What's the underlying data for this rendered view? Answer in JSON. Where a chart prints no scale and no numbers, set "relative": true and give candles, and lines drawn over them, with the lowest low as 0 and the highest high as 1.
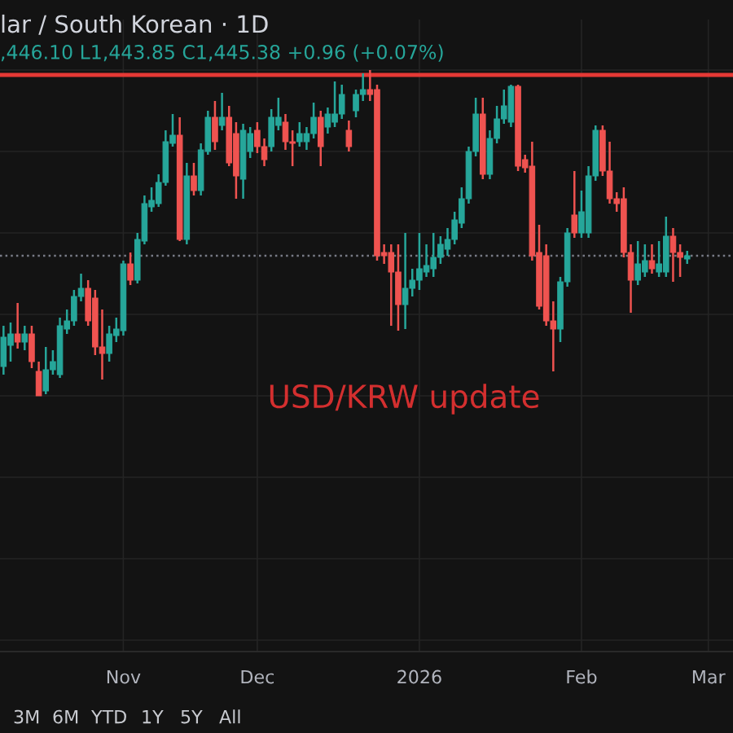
{
  "chart_data": {
    "type": "candlestick",
    "relative": true,
    "title": "lar / South Korean · 1D",
    "subtitle": ",446.10 L1,443.85 C1,445.38 +0.96 (+0.07%)",
    "categories": [
      null,
      null,
      null,
      null,
      null,
      null,
      null,
      null,
      null,
      null,
      null,
      null,
      null,
      null,
      null,
      null,
      null,
      "Nov",
      null,
      null,
      null,
      null,
      null,
      null,
      null,
      null,
      null,
      null,
      null,
      null,
      null,
      null,
      null,
      null,
      null,
      null,
      "Dec",
      null,
      null,
      null,
      null,
      null,
      null,
      null,
      null,
      null,
      null,
      null,
      null,
      null,
      null,
      null,
      null,
      null,
      null,
      null,
      null,
      null,
      null,
      "2026",
      null,
      null,
      null,
      null,
      null,
      null,
      null,
      null,
      null,
      null,
      null,
      null,
      null,
      null,
      null,
      null,
      null,
      null,
      null,
      null,
      null,
      null,
      "Feb",
      null,
      null,
      null,
      null,
      null,
      null,
      null,
      null,
      null,
      null,
      null,
      null,
      null,
      null,
      null,
      null,
      null,
      "Mar"
    ],
    "ohlc": [
      [
        0.09,
        0.215,
        0.065,
        0.18
      ],
      [
        0.155,
        0.225,
        0.105,
        0.19
      ],
      [
        0.19,
        0.285,
        0.145,
        0.165
      ],
      [
        0.165,
        0.215,
        0.14,
        0.19
      ],
      [
        0.19,
        0.215,
        0.085,
        0.105
      ],
      [
        0.075,
        0.105,
        0,
        0
      ],
      [
        0.015,
        0.15,
        0.005,
        0.08
      ],
      [
        0.08,
        0.14,
        0.065,
        0.105
      ],
      [
        0.065,
        0.24,
        0.055,
        0.215
      ],
      [
        0.205,
        0.265,
        0.19,
        0.23
      ],
      [
        0.23,
        0.325,
        0.215,
        0.305
      ],
      [
        0.305,
        0.375,
        0.29,
        0.33
      ],
      [
        0.33,
        0.355,
        0.215,
        0.23
      ],
      [
        0.3,
        0.325,
        0.125,
        0.15
      ],
      [
        0.15,
        0.265,
        0.05,
        0.13
      ],
      [
        0.13,
        0.215,
        0.105,
        0.19
      ],
      [
        0.185,
        0.24,
        0.165,
        0.205
      ],
      [
        0.2,
        0.415,
        0.185,
        0.405
      ],
      [
        0.405,
        0.44,
        0.34,
        0.355
      ],
      [
        0.355,
        0.5,
        0.345,
        0.48
      ],
      [
        0.475,
        0.615,
        0.465,
        0.59
      ],
      [
        0.58,
        0.64,
        0.565,
        0.6
      ],
      [
        0.59,
        0.68,
        0.58,
        0.655
      ],
      [
        0.655,
        0.815,
        0.645,
        0.78
      ],
      [
        0.775,
        0.865,
        0.765,
        0.8
      ],
      [
        0.8,
        0.855,
        0.475,
        0.48
      ],
      [
        0.48,
        0.715,
        0.465,
        0.675
      ],
      [
        0.675,
        0.715,
        0.615,
        0.63
      ],
      [
        0.63,
        0.775,
        0.615,
        0.755
      ],
      [
        0.75,
        0.875,
        0.74,
        0.855
      ],
      [
        0.855,
        0.905,
        0.755,
        0.78
      ],
      [
        0.83,
        0.93,
        0.815,
        0.855
      ],
      [
        0.855,
        0.89,
        0.705,
        0.715
      ],
      [
        0.805,
        0.84,
        0.605,
        0.675
      ],
      [
        0.665,
        0.835,
        0.605,
        0.815
      ],
      [
        0.75,
        0.825,
        0.73,
        0.805
      ],
      [
        0.815,
        0.84,
        0.745,
        0.765
      ],
      [
        0.765,
        0.79,
        0.705,
        0.725
      ],
      [
        0.765,
        0.88,
        0.75,
        0.855
      ],
      [
        0.83,
        0.915,
        0.815,
        0.855
      ],
      [
        0.84,
        0.865,
        0.755,
        0.78
      ],
      [
        0.78,
        0.815,
        0.705,
        0.775
      ],
      [
        0.78,
        0.84,
        0.765,
        0.805
      ],
      [
        0.78,
        0.825,
        0.755,
        0.805
      ],
      [
        0.805,
        0.9,
        0.79,
        0.855
      ],
      [
        0.855,
        0.875,
        0.705,
        0.765
      ],
      [
        0.825,
        0.885,
        0.805,
        0.865
      ],
      [
        0.84,
        0.965,
        0.825,
        0.865
      ],
      [
        0.865,
        0.955,
        0.85,
        0.925
      ],
      [
        0.815,
        0.845,
        0.75,
        0.765
      ],
      [
        0.875,
        0.94,
        0.855,
        0.925
      ],
      [
        0.925,
        0.99,
        0.905,
        0.94
      ],
      [
        0.94,
        1,
        0.905,
        0.925
      ],
      [
        0.94,
        0.955,
        0.415,
        0.43
      ],
      [
        0.44,
        0.465,
        0.405,
        0.43
      ],
      [
        0.44,
        0.465,
        0.215,
        0.38
      ],
      [
        0.38,
        0.465,
        0.2,
        0.28
      ],
      [
        0.28,
        0.5,
        0.205,
        0.33
      ],
      [
        0.33,
        0.39,
        0.305,
        0.355
      ],
      [
        0.355,
        0.5,
        0.325,
        0.39
      ],
      [
        0.38,
        0.465,
        0.365,
        0.4
      ],
      [
        0.39,
        0.5,
        0.365,
        0.425
      ],
      [
        0.425,
        0.49,
        0.405,
        0.465
      ],
      [
        0.45,
        0.515,
        0.43,
        0.48
      ],
      [
        0.48,
        0.565,
        0.465,
        0.54
      ],
      [
        0.53,
        0.64,
        0.515,
        0.605
      ],
      [
        0.605,
        0.765,
        0.59,
        0.75
      ],
      [
        0.75,
        0.915,
        0.735,
        0.865
      ],
      [
        0.865,
        0.915,
        0.665,
        0.68
      ],
      [
        0.68,
        0.815,
        0.665,
        0.79
      ],
      [
        0.79,
        0.89,
        0.775,
        0.85
      ],
      [
        0.85,
        0.94,
        0.835,
        0.89
      ],
      [
        0.84,
        0.955,
        0.825,
        0.95
      ],
      [
        0.95,
        0.955,
        0.69,
        0.705
      ],
      [
        0.725,
        0.74,
        0.685,
        0.7
      ],
      [
        0.705,
        0.78,
        0.415,
        0.43
      ],
      [
        0.44,
        0.525,
        0.265,
        0.275
      ],
      [
        0.43,
        0.465,
        0.215,
        0.23
      ],
      [
        0.23,
        0.29,
        0.075,
        0.205
      ],
      [
        0.205,
        0.365,
        0.165,
        0.35
      ],
      [
        0.35,
        0.515,
        0.335,
        0.5
      ],
      [
        0.555,
        0.69,
        0.485,
        0.5
      ],
      [
        0.5,
        0.63,
        0.485,
        0.565
      ],
      [
        0.5,
        0.705,
        0.485,
        0.675
      ],
      [
        0.675,
        0.83,
        0.66,
        0.815
      ],
      [
        0.815,
        0.83,
        0.675,
        0.69
      ],
      [
        0.69,
        0.78,
        0.59,
        0.605
      ],
      [
        0.605,
        0.625,
        0.565,
        0.59
      ],
      [
        0.605,
        0.64,
        0.425,
        0.44
      ],
      [
        0.44,
        0.465,
        0.255,
        0.355
      ],
      [
        0.355,
        0.475,
        0.34,
        0.405
      ],
      [
        0.38,
        0.465,
        0.365,
        0.415
      ],
      [
        0.415,
        0.465,
        0.375,
        0.39
      ],
      [
        0.38,
        0.475,
        0.365,
        0.405
      ],
      [
        0.38,
        0.55,
        0.365,
        0.49
      ],
      [
        0.49,
        0.515,
        0.35,
        0.44
      ],
      [
        0.44,
        0.465,
        0.365,
        0.425
      ],
      [
        0.42,
        0.445,
        0.405,
        0.43
      ],
      null,
      null,
      null
    ],
    "colors": [
      "#26a69a",
      "#26a69a",
      "#ef5350",
      "#26a69a",
      "#ef5350",
      "#ef5350",
      "#26a69a",
      "#26a69a",
      "#26a69a",
      "#26a69a",
      "#26a69a",
      "#26a69a",
      "#ef5350",
      "#ef5350",
      "#ef5350",
      "#26a69a",
      "#26a69a",
      "#26a69a",
      "#ef5350",
      "#26a69a",
      "#26a69a",
      "#26a69a",
      "#26a69a",
      "#26a69a",
      "#26a69a",
      "#ef5350",
      "#26a69a",
      "#ef5350",
      "#26a69a",
      "#26a69a",
      "#ef5350",
      "#26a69a",
      "#ef5350",
      "#ef5350",
      "#26a69a",
      "#26a69a",
      "#ef5350",
      "#ef5350",
      "#26a69a",
      "#26a69a",
      "#ef5350",
      "#ef5350",
      "#26a69a",
      "#26a69a",
      "#26a69a",
      "#ef5350",
      "#26a69a",
      "#26a69a",
      "#26a69a",
      "#ef5350",
      "#26a69a",
      "#26a69a",
      "#ef5350",
      "#ef5350",
      "#ef5350",
      "#ef5350",
      "#ef5350",
      "#26a69a",
      "#26a69a",
      "#26a69a",
      "#26a69a",
      "#26a69a",
      "#26a69a",
      "#26a69a",
      "#26a69a",
      "#26a69a",
      "#26a69a",
      "#26a69a",
      "#ef5350",
      "#26a69a",
      "#26a69a",
      "#26a69a",
      "#26a69a",
      "#ef5350",
      "#ef5350",
      "#ef5350",
      "#ef5350",
      "#ef5350",
      "#ef5350",
      "#26a69a",
      "#26a69a",
      "#ef5350",
      "#26a69a",
      "#26a69a",
      "#26a69a",
      "#ef5350",
      "#ef5350",
      "#ef5350",
      "#ef5350",
      "#ef5350",
      "#26a69a",
      "#26a69a",
      "#ef5350",
      "#26a69a",
      "#26a69a",
      "#ef5350",
      "#ef5350",
      "#26a69a",
      null,
      null,
      null
    ],
    "ref_lines": [
      {
        "axis": "y",
        "value": 0.985,
        "color": "#e53935"
      },
      {
        "axis": "y",
        "value": 0.43,
        "color": "#787b86",
        "line_style": "dotted"
      }
    ],
    "annotations": [
      "USD/KRW update",
      "3M",
      "6M",
      "YTD",
      "1Y",
      "5Y",
      "All"
    ],
    "grid": true
  }
}
